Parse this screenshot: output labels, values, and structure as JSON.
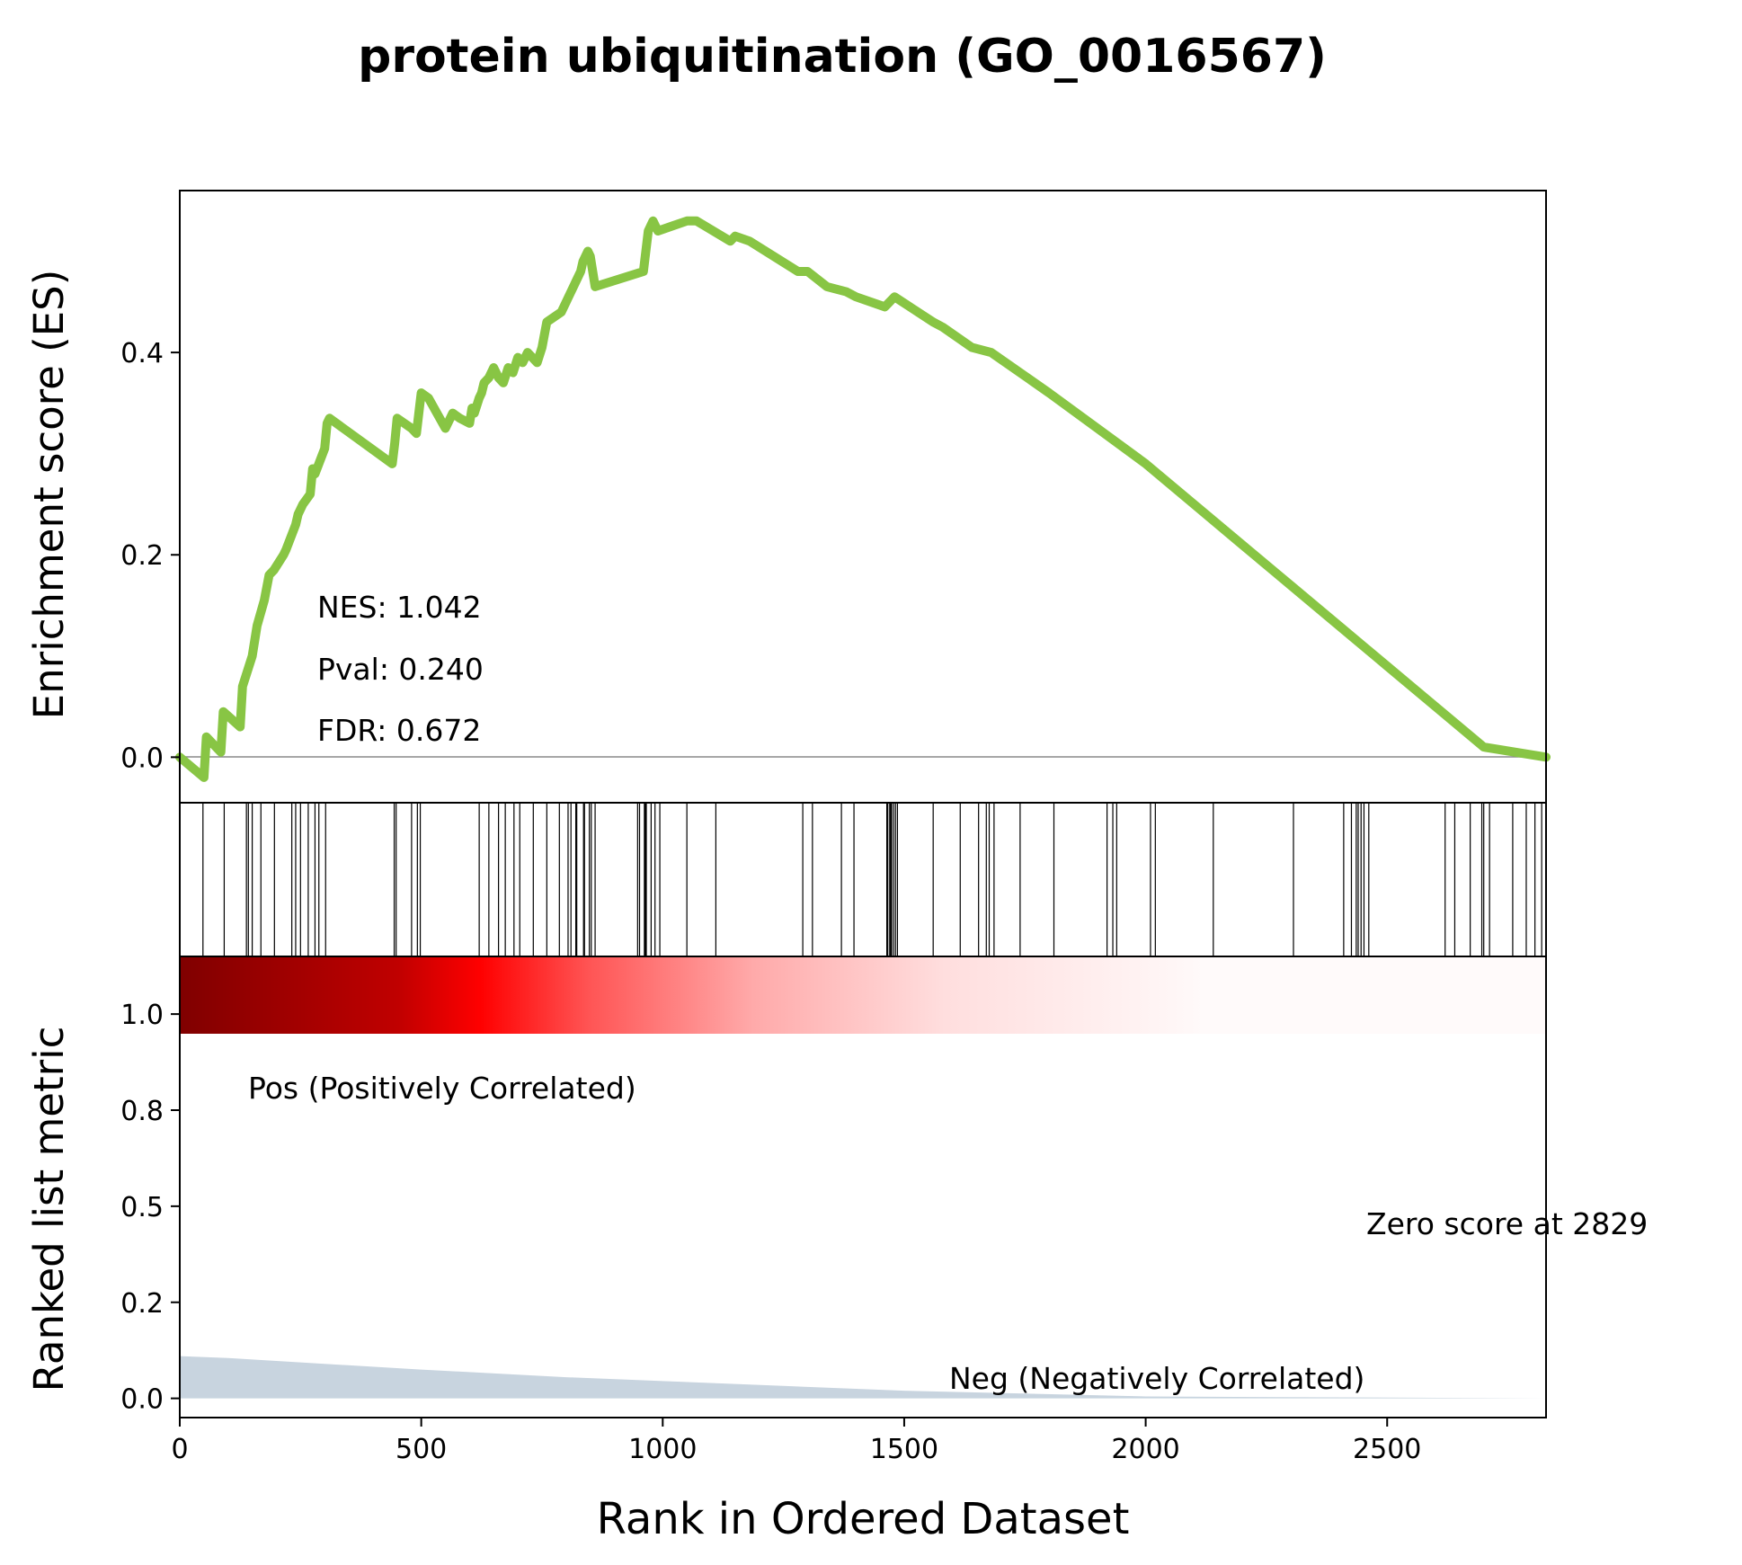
{
  "chart_data": {
    "type": "line",
    "title": "protein ubiquitination (GO_0016567)",
    "xlabel": "Rank in Ordered Dataset",
    "xlim": [
      0,
      2829
    ],
    "x_ticks": [
      "0",
      "500",
      "1000",
      "1500",
      "2000",
      "2500"
    ],
    "x_tick_values": [
      0,
      500,
      1000,
      1500,
      2000,
      2500
    ],
    "es_panel": {
      "ylabel": "Enrichment score (ES)",
      "ylim": [
        -0.045,
        0.56
      ],
      "y_ticks": [
        "0.0",
        "0.2",
        "0.4"
      ],
      "y_tick_values": [
        0.0,
        0.2,
        0.4
      ],
      "line_color": "#88c544",
      "stats": [
        "NES: 1.042",
        "Pval: 0.240",
        "FDR: 0.672"
      ],
      "x": [
        0,
        50,
        55,
        85,
        90,
        125,
        130,
        150,
        160,
        175,
        185,
        195,
        215,
        220,
        240,
        245,
        255,
        270,
        275,
        280,
        300,
        305,
        310,
        440,
        445,
        450,
        480,
        490,
        500,
        515,
        550,
        565,
        580,
        600,
        605,
        610,
        620,
        625,
        630,
        640,
        650,
        655,
        660,
        670,
        680,
        690,
        700,
        710,
        720,
        740,
        750,
        760,
        790,
        820,
        830,
        835,
        840,
        845,
        850,
        860,
        960,
        965,
        970,
        980,
        985,
        990,
        1020,
        1050,
        1070,
        1140,
        1150,
        1180,
        1280,
        1300,
        1340,
        1380,
        1400,
        1460,
        1480,
        1560,
        1580,
        1640,
        1680,
        1800,
        1900,
        2000,
        2100,
        2200,
        2300,
        2400,
        2500,
        2600,
        2700,
        2829
      ],
      "es": [
        0.0,
        -0.02,
        0.02,
        0.005,
        0.045,
        0.03,
        0.07,
        0.1,
        0.13,
        0.155,
        0.18,
        0.185,
        0.2,
        0.205,
        0.23,
        0.24,
        0.25,
        0.26,
        0.285,
        0.28,
        0.305,
        0.33,
        0.335,
        0.29,
        0.31,
        0.335,
        0.325,
        0.32,
        0.36,
        0.355,
        0.325,
        0.34,
        0.335,
        0.33,
        0.345,
        0.34,
        0.355,
        0.36,
        0.37,
        0.375,
        0.385,
        0.38,
        0.375,
        0.37,
        0.385,
        0.38,
        0.395,
        0.39,
        0.4,
        0.39,
        0.405,
        0.43,
        0.44,
        0.47,
        0.48,
        0.49,
        0.495,
        0.5,
        0.495,
        0.465,
        0.48,
        0.5,
        0.52,
        0.53,
        0.525,
        0.52,
        0.525,
        0.53,
        0.53,
        0.51,
        0.515,
        0.51,
        0.48,
        0.48,
        0.465,
        0.46,
        0.455,
        0.445,
        0.455,
        0.43,
        0.425,
        0.405,
        0.4,
        0.36,
        0.325,
        0.29,
        0.25,
        0.21,
        0.17,
        0.13,
        0.09,
        0.05,
        0.01,
        0.0
      ]
    },
    "hits": [
      48,
      92,
      138,
      142,
      150,
      168,
      196,
      232,
      240,
      250,
      266,
      280,
      288,
      302,
      444,
      448,
      480,
      492,
      498,
      620,
      640,
      660,
      674,
      692,
      704,
      732,
      760,
      786,
      804,
      810,
      820,
      822,
      836,
      838,
      848,
      852,
      860,
      948,
      952,
      962,
      964,
      966,
      976,
      984,
      994,
      1050,
      1110,
      1290,
      1310,
      1370,
      1396,
      1464,
      1466,
      1470,
      1472,
      1474,
      1478,
      1482,
      1486,
      1560,
      1616,
      1654,
      1670,
      1676,
      1686,
      1740,
      1810,
      1920,
      1932,
      1940,
      2010,
      2020,
      2140,
      2306,
      2410,
      2426,
      2436,
      2440,
      2446,
      2452,
      2462,
      2620,
      2640,
      2672,
      2696,
      2700,
      2712,
      2760,
      2788,
      2806,
      2820
    ],
    "heatmap": {
      "colors": [
        "#800000",
        "#c00000",
        "#ff0000",
        "#ff5555",
        "#ffaaaa",
        "#ffdede",
        "#fff5f5",
        "#fffafa"
      ],
      "stops": [
        0.0,
        0.16,
        0.22,
        0.3,
        0.42,
        0.56,
        0.72,
        0.75
      ]
    },
    "metric_panel": {
      "ylabel": "Ranked list metric",
      "ylim": [
        -0.05,
        1.15
      ],
      "y_ticks": [
        "0.0",
        "0.2",
        "0.5",
        "0.8",
        "1.0"
      ],
      "y_tick_values": [
        0.0,
        0.25,
        0.5,
        0.75,
        1.0
      ],
      "fill_color": "#c8d4df",
      "x": [
        0,
        100,
        300,
        500,
        800,
        1000,
        1500,
        2000,
        2829
      ],
      "values": [
        0.11,
        0.105,
        0.09,
        0.075,
        0.055,
        0.045,
        0.02,
        0.005,
        0.0
      ],
      "pos_label": "Pos (Positively Correlated)",
      "pos_color": "#ff0000",
      "neg_label": "Neg (Negatively Correlated)",
      "neg_color": "#0000ff",
      "zero_label": "Zero score at 2829"
    }
  }
}
